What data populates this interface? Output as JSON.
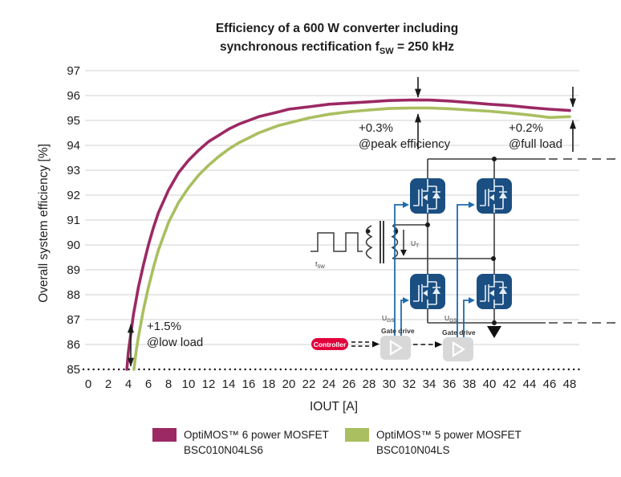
{
  "title": {
    "line1": "Efficiency of a 600 W converter including",
    "line2_pre": "synchronous rectification f",
    "line2_sub": "SW",
    "line2_post": " = 250 kHz"
  },
  "chart_data": {
    "type": "line",
    "title": "Efficiency of a 600 W converter including synchronous rectification fSW = 250 kHz",
    "xlabel": "IOUT [A]",
    "ylabel": "Overall system efficiency [%]",
    "xlim": [
      0,
      48
    ],
    "ylim": [
      85,
      97
    ],
    "xticks": [
      0,
      2,
      4,
      6,
      8,
      10,
      12,
      14,
      16,
      18,
      20,
      22,
      24,
      26,
      28,
      30,
      32,
      34,
      36,
      38,
      40,
      42,
      44,
      46,
      48
    ],
    "yticks": [
      85,
      86,
      87,
      88,
      89,
      90,
      91,
      92,
      93,
      94,
      95,
      96,
      97
    ],
    "grid": true,
    "baseline_style": "dotted",
    "legend_position": "bottom",
    "series": [
      {
        "name": "OptiMOS™ 6 power MOSFET BSC010N04LS6",
        "color": "#9C2963",
        "points": [
          [
            3.85,
            85.0
          ],
          [
            4,
            85.7
          ],
          [
            4.5,
            87.2
          ],
          [
            5,
            88.3
          ],
          [
            5.5,
            89.2
          ],
          [
            6,
            90.0
          ],
          [
            6.5,
            90.7
          ],
          [
            7,
            91.3
          ],
          [
            8,
            92.2
          ],
          [
            9,
            92.9
          ],
          [
            10,
            93.4
          ],
          [
            11,
            93.8
          ],
          [
            12,
            94.15
          ],
          [
            13,
            94.4
          ],
          [
            14,
            94.65
          ],
          [
            15,
            94.85
          ],
          [
            16,
            95.0
          ],
          [
            17,
            95.15
          ],
          [
            18,
            95.25
          ],
          [
            19,
            95.35
          ],
          [
            20,
            95.45
          ],
          [
            22,
            95.55
          ],
          [
            24,
            95.65
          ],
          [
            26,
            95.7
          ],
          [
            28,
            95.75
          ],
          [
            30,
            95.8
          ],
          [
            32,
            95.82
          ],
          [
            34,
            95.82
          ],
          [
            36,
            95.78
          ],
          [
            38,
            95.72
          ],
          [
            40,
            95.65
          ],
          [
            42,
            95.6
          ],
          [
            44,
            95.52
          ],
          [
            46,
            95.45
          ],
          [
            48,
            95.4
          ]
        ]
      },
      {
        "name": "OptiMOS™ 5 power MOSFET BSC010N04LS",
        "color": "#A9BF60",
        "points": [
          [
            4.55,
            85.0
          ],
          [
            4.8,
            85.8
          ],
          [
            5,
            86.3
          ],
          [
            5.5,
            87.4
          ],
          [
            6,
            88.3
          ],
          [
            6.5,
            89.1
          ],
          [
            7,
            89.8
          ],
          [
            8,
            90.9
          ],
          [
            9,
            91.7
          ],
          [
            10,
            92.3
          ],
          [
            11,
            92.8
          ],
          [
            12,
            93.2
          ],
          [
            13,
            93.55
          ],
          [
            14,
            93.85
          ],
          [
            15,
            94.1
          ],
          [
            16,
            94.3
          ],
          [
            17,
            94.5
          ],
          [
            18,
            94.65
          ],
          [
            19,
            94.8
          ],
          [
            20,
            94.9
          ],
          [
            22,
            95.1
          ],
          [
            24,
            95.25
          ],
          [
            26,
            95.35
          ],
          [
            28,
            95.42
          ],
          [
            30,
            95.48
          ],
          [
            32,
            95.5
          ],
          [
            34,
            95.5
          ],
          [
            36,
            95.47
          ],
          [
            38,
            95.42
          ],
          [
            40,
            95.37
          ],
          [
            42,
            95.3
          ],
          [
            44,
            95.22
          ],
          [
            46,
            95.12
          ],
          [
            48,
            95.15
          ]
        ]
      }
    ],
    "annotations": [
      {
        "id": "peak",
        "line1": "+0.3%",
        "line2": "@peak efficiency"
      },
      {
        "id": "full",
        "line1": "+0.2%",
        "line2": "@full load"
      },
      {
        "id": "low",
        "line1": "+1.5%",
        "line2": "@low load"
      }
    ]
  },
  "legend": [
    {
      "label": "OptiMOS™ 6 power MOSFET",
      "sub": "BSC010N04LS6",
      "color": "#9C2963"
    },
    {
      "label": "OptiMOS™ 5 power MOSFET",
      "sub": "BSC010N04LS",
      "color": "#A9BF60"
    }
  ],
  "circuit": {
    "fsw_f": "f",
    "fsw_sub": "SW",
    "ut_u": "U",
    "ut_sub": "T",
    "ugs_u": "U",
    "ugs_sub": "GS",
    "gate_drive": "Gate drive",
    "controller": "Controller",
    "mosfet_color": "#1B4F82",
    "gate_line_color": "#1E6BAD",
    "controller_color": "#E2003C"
  }
}
